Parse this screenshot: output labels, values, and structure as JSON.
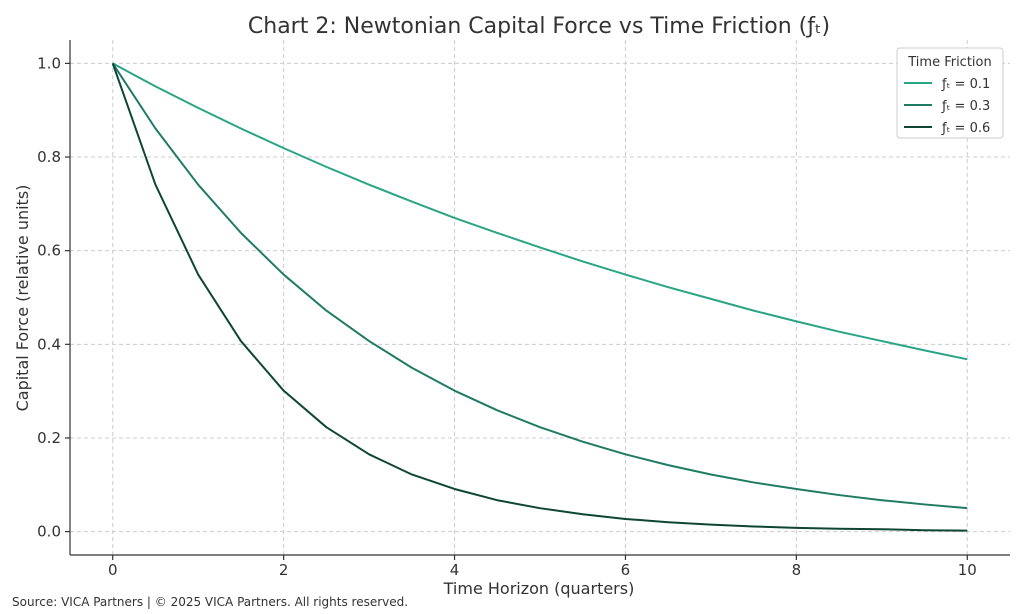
{
  "chart_data": {
    "type": "line",
    "title": "Chart 2: Newtonian Capital Force vs Time Friction (ƒₜ)",
    "xlabel": "Time Horizon (quarters)",
    "ylabel": "Capital Force (relative units)",
    "xlim": [
      -0.5,
      10.5
    ],
    "ylim": [
      -0.05,
      1.05
    ],
    "xticks": [
      0,
      2,
      4,
      6,
      8,
      10
    ],
    "xtick_labels": [
      "0",
      "2",
      "4",
      "6",
      "8",
      "10"
    ],
    "yticks": [
      0.0,
      0.2,
      0.4,
      0.6,
      0.8,
      1.0
    ],
    "ytick_labels": [
      "0.0",
      "0.2",
      "0.4",
      "0.6",
      "0.8",
      "1.0"
    ],
    "grid": true,
    "legend": {
      "title": "Time Friction",
      "position": "top-right"
    },
    "x": [
      0,
      0.5,
      1,
      1.5,
      2,
      2.5,
      3,
      3.5,
      4,
      4.5,
      5,
      5.5,
      6,
      6.5,
      7,
      7.5,
      8,
      8.5,
      9,
      9.5,
      10
    ],
    "series": [
      {
        "name": "ƒₜ = 0.1",
        "color": "#2aa486",
        "values": [
          1.0,
          0.951,
          0.905,
          0.861,
          0.819,
          0.779,
          0.741,
          0.705,
          0.67,
          0.638,
          0.607,
          0.577,
          0.549,
          0.522,
          0.497,
          0.472,
          0.449,
          0.427,
          0.407,
          0.387,
          0.368
        ]
      },
      {
        "name": "ƒₜ = 0.3",
        "color": "#1f7b63",
        "values": [
          1.0,
          0.861,
          0.741,
          0.638,
          0.549,
          0.472,
          0.407,
          0.35,
          0.301,
          0.259,
          0.223,
          0.192,
          0.165,
          0.142,
          0.122,
          0.105,
          0.091,
          0.078,
          0.067,
          0.058,
          0.05
        ]
      },
      {
        "name": "ƒₜ = 0.6",
        "color": "#0e4534",
        "values": [
          1.0,
          0.741,
          0.549,
          0.407,
          0.301,
          0.223,
          0.165,
          0.122,
          0.091,
          0.067,
          0.05,
          0.037,
          0.027,
          0.02,
          0.015,
          0.011,
          0.008,
          0.006,
          0.005,
          0.003,
          0.002
        ]
      }
    ]
  },
  "footer": {
    "source": "Source: VICA Partners | © 2025 VICA Partners. All rights reserved."
  }
}
